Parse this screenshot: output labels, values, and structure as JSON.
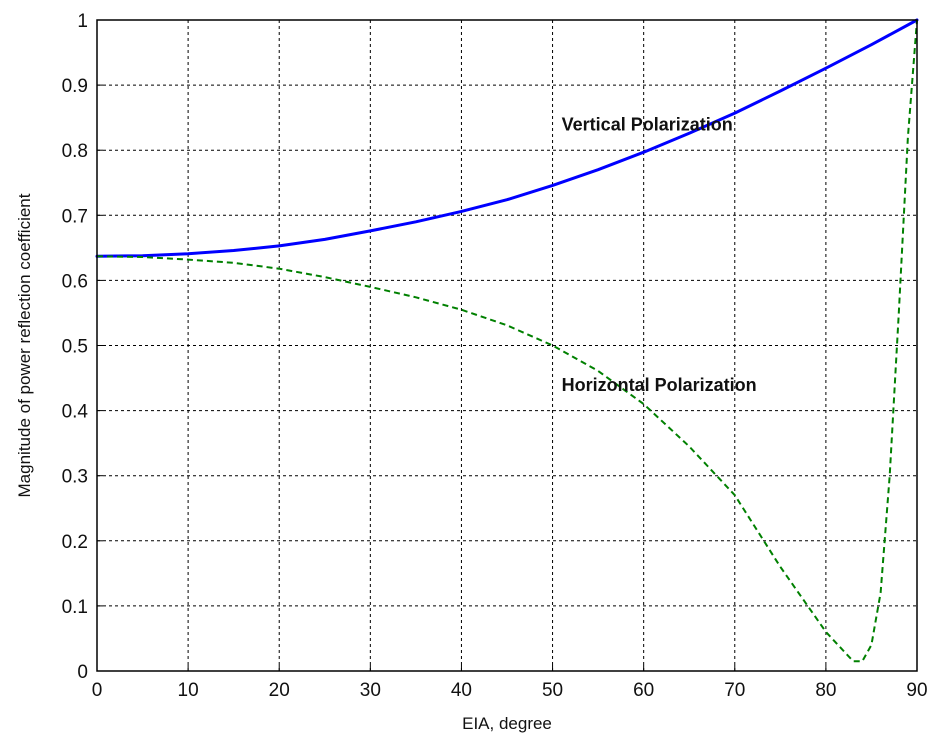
{
  "chart_data": {
    "type": "line",
    "title": "",
    "xlabel": "EIA, degree",
    "ylabel": "Magnitude of power reflection coefficient",
    "xlim": [
      0,
      90
    ],
    "ylim": [
      0,
      1
    ],
    "grid": true,
    "x_ticks": [
      "0",
      "10",
      "20",
      "30",
      "40",
      "50",
      "60",
      "70",
      "80",
      "90"
    ],
    "y_ticks": [
      "0",
      "0.1",
      "0.2",
      "0.3",
      "0.4",
      "0.5",
      "0.6",
      "0.7",
      "0.8",
      "0.9",
      "1"
    ],
    "series": [
      {
        "name": "Vertical Polarization",
        "color": "#0000ff",
        "style": "solid",
        "x": [
          0,
          5,
          10,
          15,
          20,
          25,
          30,
          35,
          40,
          45,
          50,
          55,
          60,
          65,
          70,
          75,
          80,
          85,
          90
        ],
        "y": [
          0.637,
          0.638,
          0.641,
          0.646,
          0.653,
          0.663,
          0.676,
          0.69,
          0.706,
          0.724,
          0.746,
          0.77,
          0.797,
          0.826,
          0.857,
          0.891,
          0.926,
          0.962,
          1.0
        ]
      },
      {
        "name": "Horizontal Polarization",
        "color": "#008000",
        "style": "dashed",
        "x": [
          0,
          5,
          10,
          15,
          20,
          25,
          30,
          35,
          40,
          45,
          50,
          55,
          60,
          65,
          70,
          75,
          78,
          80,
          82,
          83,
          84,
          85,
          86,
          87,
          88,
          89,
          90
        ],
        "y": [
          0.637,
          0.636,
          0.632,
          0.627,
          0.618,
          0.605,
          0.59,
          0.574,
          0.555,
          0.531,
          0.5,
          0.461,
          0.41,
          0.345,
          0.27,
          0.16,
          0.1,
          0.06,
          0.03,
          0.015,
          0.015,
          0.04,
          0.12,
          0.3,
          0.55,
          0.82,
          1.0
        ]
      }
    ],
    "annotations": [
      {
        "text": "Vertical Polarization",
        "x": 51,
        "y": 0.83
      },
      {
        "text": "Horizontal Polarization",
        "x": 51,
        "y": 0.43
      }
    ]
  }
}
